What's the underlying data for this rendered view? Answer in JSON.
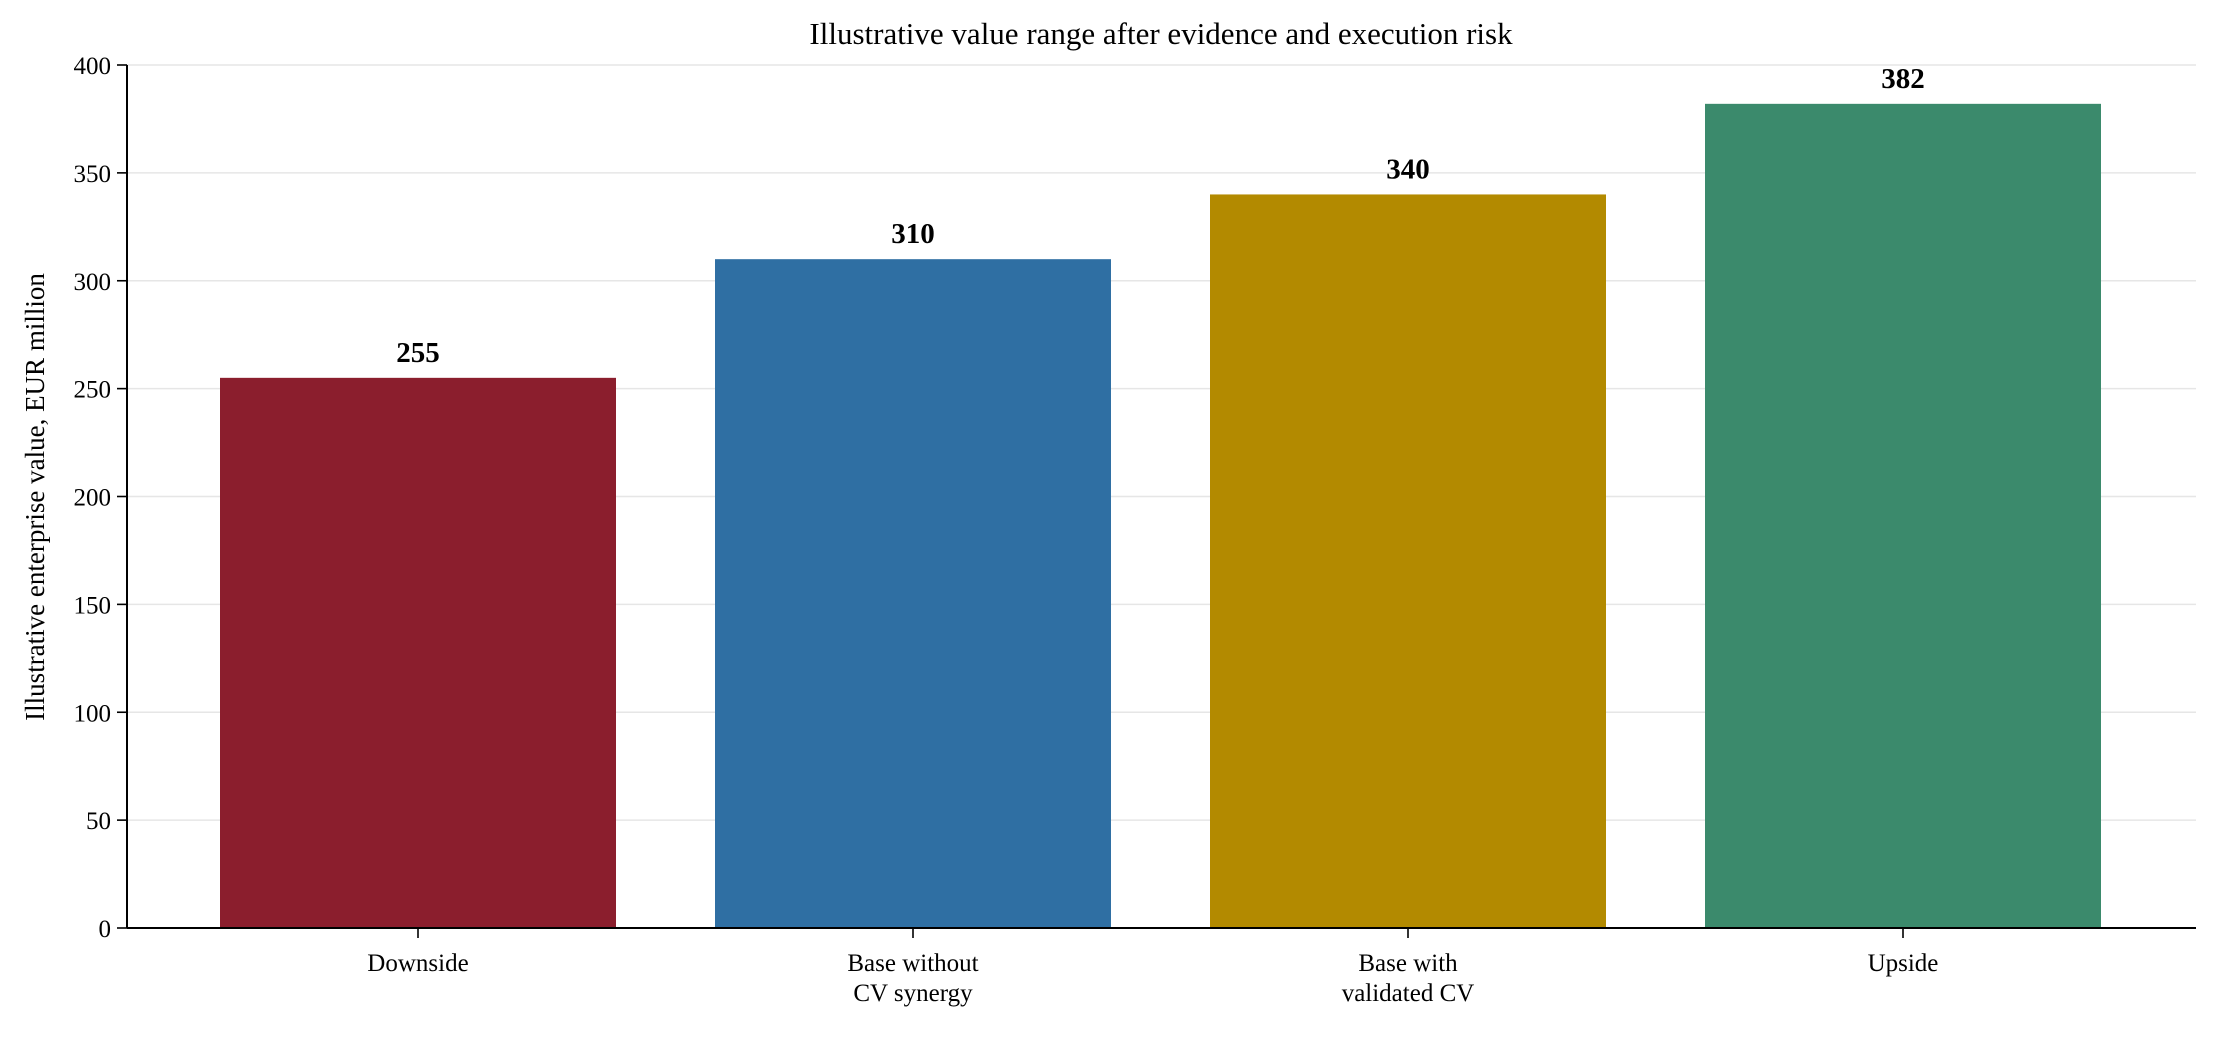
{
  "chart_data": {
    "type": "bar",
    "title": "Illustrative value range after evidence and execution risk",
    "xlabel": "",
    "ylabel": "Illustrative enterprise value, EUR million",
    "categories": [
      [
        "Downside"
      ],
      [
        "Base without",
        "CV synergy"
      ],
      [
        "Base with",
        "validated CV"
      ],
      [
        "Upside"
      ]
    ],
    "values": [
      255,
      310,
      340,
      382
    ],
    "value_labels": [
      "255",
      "310",
      "340",
      "382"
    ],
    "colors": [
      "#8b1e2d",
      "#2f6fa3",
      "#b38a00",
      "#3b8a6c"
    ],
    "ylim": [
      0,
      400
    ],
    "yticks": [
      0,
      50,
      100,
      150,
      200,
      250,
      300,
      350,
      400
    ],
    "grid": "horizontal",
    "legend": "none"
  }
}
